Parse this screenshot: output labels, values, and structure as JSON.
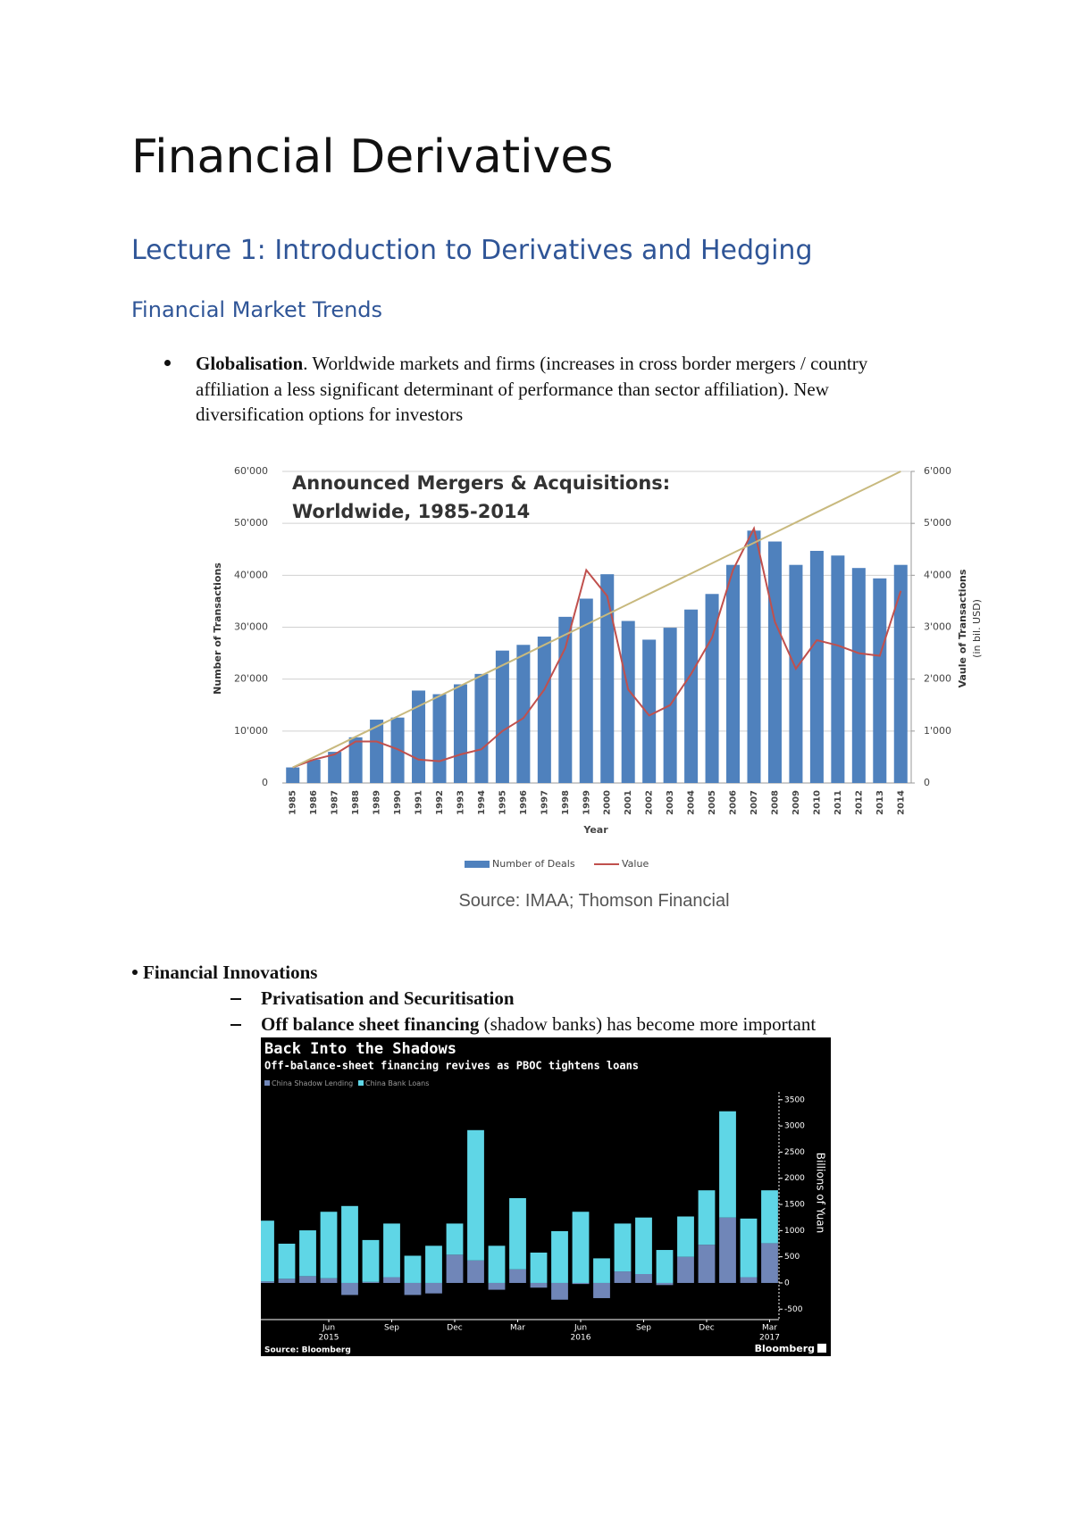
{
  "header": {
    "title": "Financial Derivatives",
    "lecture": "Lecture 1: Introduction to Derivatives and Hedging",
    "section": "Financial Market Trends"
  },
  "bullets": [
    {
      "label": "Globalisation",
      "text": ". Worldwide markets and firms (increases in cross border mergers / country affiliation a less significant determinant of performance than sector affiliation). New diversification options for investors"
    },
    {
      "label": "Financial Innovations",
      "items": [
        {
          "label": "Privatisation and Securitisation"
        },
        {
          "label": "Off balance sheet financing",
          "text": " (shadow banks) has become more important"
        }
      ]
    }
  ],
  "figure_caption": "Source: IMAA; Thomson Financial",
  "chart_data": [
    {
      "type": "bar_line",
      "title": [
        "Announced Mergers & Acquisitions:",
        "Worldwide, 1985-2014"
      ],
      "x_label": "Year",
      "y_label": "Number of Transactions",
      "y2_label": [
        "Vaule of Transactions",
        "(in bil. USD)"
      ],
      "categories": [
        "1985",
        "1986",
        "1987",
        "1988",
        "1989",
        "1990",
        "1991",
        "1992",
        "1993",
        "1994",
        "1995",
        "1996",
        "1997",
        "1998",
        "1999",
        "2000",
        "2001",
        "2002",
        "2003",
        "2004",
        "2005",
        "2006",
        "2007",
        "2008",
        "2009",
        "2010",
        "2011",
        "2012",
        "2013",
        "2014"
      ],
      "series": [
        {
          "name": "Number of Deals",
          "type": "bar",
          "color": "#4f81bd",
          "values": [
            3000,
            4500,
            6000,
            8800,
            12200,
            12600,
            17800,
            17100,
            19000,
            21000,
            25500,
            26600,
            28200,
            32000,
            35500,
            40200,
            31200,
            27600,
            29900,
            33400,
            36400,
            42000,
            48600,
            46500,
            42000,
            44700,
            43800,
            41400,
            39400,
            42000
          ]
        },
        {
          "name": "Value",
          "type": "line",
          "axis": "y2",
          "color": "#c0504d",
          "values": [
            300,
            450,
            550,
            800,
            800,
            650,
            450,
            420,
            550,
            650,
            1000,
            1250,
            1800,
            2600,
            4100,
            3600,
            1800,
            1300,
            1500,
            2100,
            2800,
            4100,
            4900,
            3100,
            2200,
            2750,
            2650,
            2500,
            2450,
            3700
          ]
        },
        {
          "type": "line",
          "axis": "y2",
          "color": "#c8b97e",
          "values": [
            300,
            497,
            693,
            890,
            1086,
            1283,
            1479,
            1676,
            1872,
            2069,
            2266,
            2462,
            2659,
            2855,
            3052,
            3248,
            3445,
            3641,
            3838,
            4034,
            4231,
            4428,
            4624,
            4821,
            5017,
            5214,
            5410,
            5607,
            5803,
            6000
          ]
        }
      ],
      "ylim": [
        0,
        60000
      ],
      "yticks": [
        0,
        {
          "value": 10000,
          "label": "10'000"
        },
        {
          "value": 20000,
          "label": "20'000"
        },
        {
          "value": 30000,
          "label": "30'000"
        },
        {
          "value": 40000,
          "label": "40'000"
        },
        {
          "value": 50000,
          "label": "50'000"
        },
        {
          "value": 60000,
          "label": "60'000"
        }
      ],
      "y2lim": [
        0,
        6000
      ],
      "y2ticks": [
        0,
        {
          "value": 1000,
          "label": "1'000"
        },
        {
          "value": 2000,
          "label": "2'000"
        },
        {
          "value": 3000,
          "label": "3'000"
        },
        {
          "value": 4000,
          "label": "4'000"
        },
        {
          "value": 5000,
          "label": "5'000"
        },
        {
          "value": 6000,
          "label": "6'000"
        }
      ],
      "grid": true,
      "legend": "bottom"
    },
    {
      "type": "stacked_bar",
      "title": "Back Into the Shadows",
      "subtitle": "Off-balance-sheet financing revives as PBOC tightens loans",
      "y_label": "Billions of Yuan",
      "source": "Source: Bloomberg",
      "brand": "Bloomberg",
      "categories": [
        null,
        null,
        null,
        "Jun",
        null,
        null,
        "Sep",
        null,
        null,
        "Dec",
        null,
        null,
        "Mar",
        null,
        null,
        "Jun",
        null,
        null,
        "Sep",
        null,
        null,
        "Dec",
        null,
        null,
        "Mar"
      ],
      "category_years": [
        null,
        null,
        null,
        "2015",
        null,
        null,
        null,
        null,
        null,
        null,
        null,
        null,
        null,
        null,
        null,
        "2016",
        null,
        null,
        null,
        null,
        null,
        null,
        null,
        null,
        "2017"
      ],
      "series": [
        {
          "name": "China Shadow Lending",
          "color": "#7086b8",
          "values": [
            30,
            80,
            130,
            90,
            -230,
            20,
            110,
            -230,
            -200,
            540,
            430,
            -130,
            260,
            -90,
            -320,
            -20,
            -290,
            220,
            170,
            -40,
            500,
            730,
            1250,
            110,
            760
          ]
        },
        {
          "name": "China Bank Loans",
          "color": "#5fd6e6",
          "values": [
            1160,
            670,
            875,
            1270,
            1470,
            800,
            1025,
            520,
            710,
            595,
            2490,
            710,
            1360,
            580,
            990,
            1360,
            470,
            915,
            1080,
            630,
            770,
            1040,
            2030,
            1120,
            1010
          ]
        }
      ],
      "ylim": [
        -700,
        3650
      ],
      "yticks": [
        -500,
        0,
        500,
        1000,
        1500,
        2000,
        2500,
        3000,
        3500
      ],
      "legend": "top-left"
    }
  ]
}
